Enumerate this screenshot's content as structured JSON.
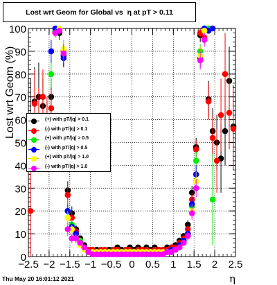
{
  "title": "Lost wrt Geom for Global vs  η at pT > 0.11",
  "date_stamp": "Thu May 20 16:01:12 2021",
  "xlabel": "η",
  "ylabel": "Lost wrt Geom (%)",
  "chart_data": {
    "type": "scatter",
    "title": "Lost wrt Geom for Global vs  η at pT > 0.11",
    "xlabel": "η",
    "ylabel": "Lost wrt Geom (%)",
    "xlim": [
      -2.5,
      2.5
    ],
    "ylim": [
      0,
      100
    ],
    "xticks": [
      -2.5,
      -2,
      -1.5,
      -1,
      -0.5,
      0,
      0.5,
      1,
      1.5,
      2,
      2.5
    ],
    "xtick_labels": [
      "−2.5",
      "−2",
      "−1.5",
      "−1",
      "−0.5",
      "0",
      "0.5",
      "1",
      "1.5",
      "2",
      "2.5"
    ],
    "yticks": [
      0,
      10,
      20,
      30,
      40,
      50,
      60,
      70,
      80,
      90,
      100
    ],
    "ytick_labels": [
      "0",
      "10",
      "20",
      "30",
      "40",
      "50",
      "60",
      "70",
      "80",
      "90",
      "100"
    ],
    "grid": true,
    "legend_position": "left-middle",
    "series": [
      {
        "name": "(+) with pT/|q| > 0.1",
        "color": "#000000",
        "x": [
          -2.45,
          -2.35,
          -2.25,
          -2.15,
          -2.05,
          -1.95,
          -1.85,
          -1.75,
          -1.65,
          -1.55,
          -1.45,
          -1.35,
          -1.25,
          -1.15,
          -1.05,
          -0.95,
          -0.85,
          -0.75,
          -0.65,
          -0.55,
          -0.45,
          -0.35,
          -0.25,
          -0.15,
          -0.05,
          0.05,
          0.15,
          0.25,
          0.35,
          0.45,
          0.55,
          0.65,
          0.75,
          0.85,
          0.95,
          1.05,
          1.15,
          1.25,
          1.35,
          1.45,
          1.55,
          1.65,
          1.75,
          1.85,
          1.95,
          2.05,
          2.15,
          2.25,
          2.35,
          2.45
        ],
        "y": [
          58,
          68,
          70,
          66,
          58,
          70,
          99,
          98,
          88,
          29,
          19,
          12,
          8,
          5,
          3,
          3,
          3,
          3,
          3,
          3,
          3,
          4,
          3,
          3,
          4,
          3,
          4,
          3,
          4,
          3,
          4,
          3,
          3,
          4,
          4,
          5,
          7,
          9,
          14,
          28,
          48,
          97,
          99,
          69,
          55,
          50,
          43,
          55,
          77,
          57
        ],
        "yerr": [
          20,
          15,
          15,
          12,
          10,
          8,
          2,
          3,
          5,
          4,
          3,
          2,
          1,
          1,
          1,
          1,
          1,
          1,
          1,
          1,
          1,
          1,
          1,
          1,
          1,
          1,
          1,
          1,
          1,
          1,
          1,
          1,
          1,
          1,
          1,
          1,
          1,
          1,
          2,
          3,
          4,
          3,
          2,
          8,
          10,
          12,
          15,
          15,
          15,
          18
        ]
      },
      {
        "name": "(-) with pT/|q| > 0.1",
        "color": "#ff0000",
        "x": [
          -2.45,
          -2.35,
          -2.25,
          -2.15,
          -2.05,
          -1.95,
          -1.85,
          -1.75,
          -1.65,
          -1.55,
          -1.45,
          -1.35,
          -1.25,
          -1.15,
          -1.05,
          -0.95,
          -0.85,
          -0.75,
          -0.65,
          -0.55,
          -0.45,
          -0.35,
          -0.25,
          -0.15,
          -0.05,
          0.05,
          0.15,
          0.25,
          0.35,
          0.45,
          0.55,
          0.65,
          0.75,
          0.85,
          0.95,
          1.05,
          1.15,
          1.25,
          1.35,
          1.45,
          1.55,
          1.65,
          1.75,
          1.85,
          1.95,
          2.05,
          2.15,
          2.25,
          2.35,
          2.45
        ],
        "y": [
          20,
          67,
          60,
          70,
          60,
          65,
          98,
          99,
          90,
          27,
          17,
          11,
          7,
          4,
          3,
          3,
          2,
          3,
          3,
          2,
          3,
          3,
          2,
          3,
          3,
          2,
          3,
          3,
          3,
          2,
          3,
          3,
          3,
          3,
          4,
          4,
          6,
          8,
          12,
          25,
          47,
          98,
          96,
          68,
          52,
          42,
          62,
          80,
          63,
          56
        ],
        "yerr": [
          22,
          15,
          14,
          12,
          10,
          8,
          2,
          2,
          5,
          4,
          3,
          2,
          1,
          1,
          1,
          1,
          1,
          1,
          1,
          1,
          1,
          1,
          1,
          1,
          1,
          1,
          1,
          1,
          1,
          1,
          1,
          1,
          1,
          1,
          1,
          1,
          1,
          1,
          2,
          3,
          4,
          2,
          3,
          8,
          10,
          14,
          16,
          18,
          16,
          18
        ]
      },
      {
        "name": "(+) with pT/|q| > 0.5",
        "color": "#00ee00",
        "x": [
          -1.95,
          -1.85,
          -1.75,
          -1.55,
          -1.45,
          -1.35,
          -1.25,
          -1.15,
          -1.05,
          -0.95,
          -0.85,
          -0.75,
          -0.65,
          -0.55,
          -0.45,
          -0.35,
          -0.25,
          -0.15,
          -0.05,
          0.05,
          0.15,
          0.25,
          0.35,
          0.45,
          0.55,
          0.65,
          0.75,
          0.85,
          0.95,
          1.05,
          1.15,
          1.25,
          1.35,
          1.45,
          1.55,
          1.65,
          1.75,
          1.85,
          1.95
        ],
        "y": [
          80,
          99,
          100,
          20,
          14,
          10,
          7,
          4,
          2,
          2,
          2,
          2,
          2,
          2,
          2,
          2,
          2,
          2,
          2,
          2,
          2,
          2,
          2,
          2,
          2,
          2,
          2,
          2,
          3,
          3,
          5,
          7,
          10,
          22,
          42,
          90,
          100,
          100,
          25
        ],
        "yerr": [
          6,
          1,
          1,
          3,
          2,
          2,
          1,
          1,
          1,
          1,
          1,
          1,
          1,
          1,
          1,
          1,
          1,
          1,
          1,
          1,
          1,
          1,
          1,
          1,
          1,
          1,
          1,
          1,
          1,
          1,
          1,
          1,
          2,
          3,
          4,
          3,
          1,
          1,
          20
        ]
      },
      {
        "name": "(-) with pT/|q| > 0.5",
        "color": "#0000ff",
        "x": [
          -1.95,
          -1.85,
          -1.75,
          -1.65,
          -1.55,
          -1.45,
          -1.35,
          -1.25,
          -1.15,
          -1.05,
          -0.95,
          -0.85,
          -0.75,
          -0.65,
          -0.55,
          -0.45,
          -0.35,
          -0.25,
          -0.15,
          -0.05,
          0.05,
          0.15,
          0.25,
          0.35,
          0.45,
          0.55,
          0.65,
          0.75,
          0.85,
          0.95,
          1.05,
          1.15,
          1.25,
          1.35,
          1.45,
          1.55,
          1.65,
          1.75,
          1.85,
          1.95
        ],
        "y": [
          90,
          100,
          99,
          87,
          20,
          13,
          10,
          6,
          4,
          2,
          2,
          2,
          2,
          2,
          2,
          2,
          2,
          2,
          2,
          2,
          2,
          2,
          2,
          2,
          2,
          2,
          2,
          2,
          2,
          3,
          3,
          5,
          7,
          10,
          23,
          36,
          87,
          100,
          99,
          100
        ],
        "yerr": [
          5,
          1,
          1,
          4,
          3,
          2,
          2,
          1,
          1,
          1,
          1,
          1,
          1,
          1,
          1,
          1,
          1,
          1,
          1,
          1,
          1,
          1,
          1,
          1,
          1,
          1,
          1,
          1,
          1,
          1,
          1,
          1,
          1,
          2,
          3,
          4,
          4,
          1,
          1,
          1
        ]
      },
      {
        "name": "(+) with pT/|q| > 1.0",
        "color": "#ffff00",
        "x": [
          -1.85,
          -1.75,
          -1.65,
          -1.55,
          -1.45,
          -1.35,
          -1.25,
          -1.15,
          -1.05,
          -0.95,
          -0.85,
          -0.75,
          -0.65,
          -0.55,
          -0.45,
          -0.35,
          -0.25,
          -0.15,
          -0.05,
          0.05,
          0.15,
          0.25,
          0.35,
          0.45,
          0.55,
          0.65,
          0.75,
          0.85,
          0.95,
          1.05,
          1.15,
          1.25,
          1.35,
          1.45,
          1.55,
          1.65,
          1.75
        ],
        "y": [
          98,
          100,
          91,
          17,
          12,
          8,
          5,
          3,
          2,
          2,
          2,
          2,
          2,
          2,
          2,
          2,
          2,
          2,
          2,
          2,
          2,
          2,
          2,
          2,
          2,
          2,
          2,
          2,
          2,
          3,
          4,
          6,
          9,
          20,
          33,
          88,
          99
        ],
        "yerr": [
          2,
          1,
          4,
          3,
          2,
          2,
          1,
          1,
          1,
          1,
          1,
          1,
          1,
          1,
          1,
          1,
          1,
          1,
          1,
          1,
          1,
          1,
          1,
          1,
          1,
          1,
          1,
          1,
          1,
          1,
          1,
          1,
          2,
          3,
          4,
          4,
          1
        ]
      },
      {
        "name": "(-) with pT/|q| > 1.0",
        "color": "#ff00ff",
        "x": [
          -1.85,
          -1.75,
          -1.65,
          -1.55,
          -1.45,
          -1.35,
          -1.25,
          -1.15,
          -1.05,
          -0.95,
          -0.85,
          -0.75,
          -0.65,
          -0.55,
          -0.45,
          -0.35,
          -0.25,
          -0.15,
          -0.05,
          0.05,
          0.15,
          0.25,
          0.35,
          0.45,
          0.55,
          0.65,
          0.75,
          0.85,
          0.95,
          1.05,
          1.15,
          1.25,
          1.35,
          1.45,
          1.55,
          1.65,
          1.75
        ],
        "y": [
          98,
          99,
          89,
          12,
          8,
          8,
          6,
          4,
          2,
          1,
          1,
          1,
          1,
          1,
          1,
          1,
          1,
          1,
          1,
          1,
          1,
          1,
          1,
          1,
          1,
          1,
          1,
          2,
          2,
          3,
          4,
          6,
          9,
          19,
          30,
          86,
          95
        ],
        "yerr": [
          2,
          1,
          4,
          3,
          2,
          2,
          1,
          1,
          1,
          1,
          1,
          1,
          1,
          1,
          1,
          1,
          1,
          1,
          1,
          1,
          1,
          1,
          1,
          1,
          1,
          1,
          1,
          1,
          1,
          1,
          1,
          1,
          2,
          3,
          4,
          4,
          3
        ]
      }
    ]
  }
}
